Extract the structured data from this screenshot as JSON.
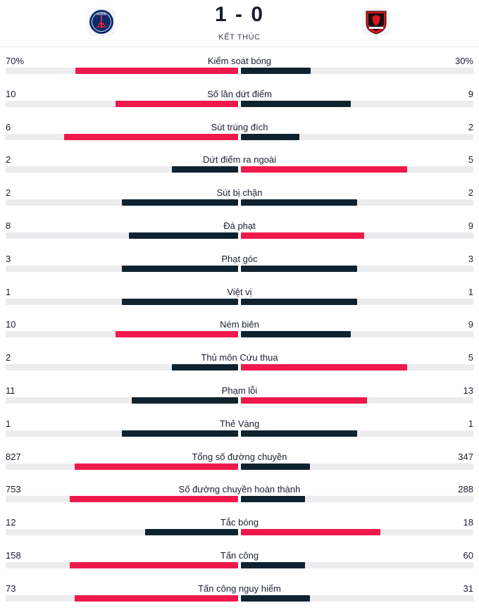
{
  "header": {
    "score": "1 - 0",
    "status": "KẾT THÚC",
    "home_team": {
      "logo_text": "PARIS",
      "color": "#0b2a6b"
    },
    "away_team": {
      "color": "#e0121f"
    }
  },
  "colors": {
    "winner": "#f0194b",
    "loser": "#0f2230",
    "track": "#ececef"
  },
  "stats": [
    {
      "label": "Kiểm soát bóng",
      "home": "70%",
      "away": "30%",
      "home_val": 70,
      "away_val": 30
    },
    {
      "label": "Số lần dứt điểm",
      "home": "10",
      "away": "9",
      "home_val": 10,
      "away_val": 9
    },
    {
      "label": "Sút trúng đích",
      "home": "6",
      "away": "2",
      "home_val": 6,
      "away_val": 2
    },
    {
      "label": "Dứt điểm ra ngoài",
      "home": "2",
      "away": "5",
      "home_val": 2,
      "away_val": 5
    },
    {
      "label": "Sút bị chặn",
      "home": "2",
      "away": "2",
      "home_val": 2,
      "away_val": 2
    },
    {
      "label": "Đá phạt",
      "home": "8",
      "away": "9",
      "home_val": 8,
      "away_val": 9
    },
    {
      "label": "Phạt góc",
      "home": "3",
      "away": "3",
      "home_val": 3,
      "away_val": 3
    },
    {
      "label": "Việt vị",
      "home": "1",
      "away": "1",
      "home_val": 1,
      "away_val": 1
    },
    {
      "label": "Ném biên",
      "home": "10",
      "away": "9",
      "home_val": 10,
      "away_val": 9
    },
    {
      "label": "Thủ môn Cứu thua",
      "home": "2",
      "away": "5",
      "home_val": 2,
      "away_val": 5
    },
    {
      "label": "Phạm lỗi",
      "home": "11",
      "away": "13",
      "home_val": 11,
      "away_val": 13
    },
    {
      "label": "Thẻ Vàng",
      "home": "1",
      "away": "1",
      "home_val": 1,
      "away_val": 1
    },
    {
      "label": "Tổng số đường chuyền",
      "home": "827",
      "away": "347",
      "home_val": 827,
      "away_val": 347
    },
    {
      "label": "Số đường chuyền hoàn thành",
      "home": "753",
      "away": "288",
      "home_val": 753,
      "away_val": 288
    },
    {
      "label": "Tắc bóng",
      "home": "12",
      "away": "18",
      "home_val": 12,
      "away_val": 18
    },
    {
      "label": "Tấn công",
      "home": "158",
      "away": "60",
      "home_val": 158,
      "away_val": 60
    },
    {
      "label": "Tấn công nguy hiểm",
      "home": "73",
      "away": "31",
      "home_val": 73,
      "away_val": 31
    }
  ]
}
